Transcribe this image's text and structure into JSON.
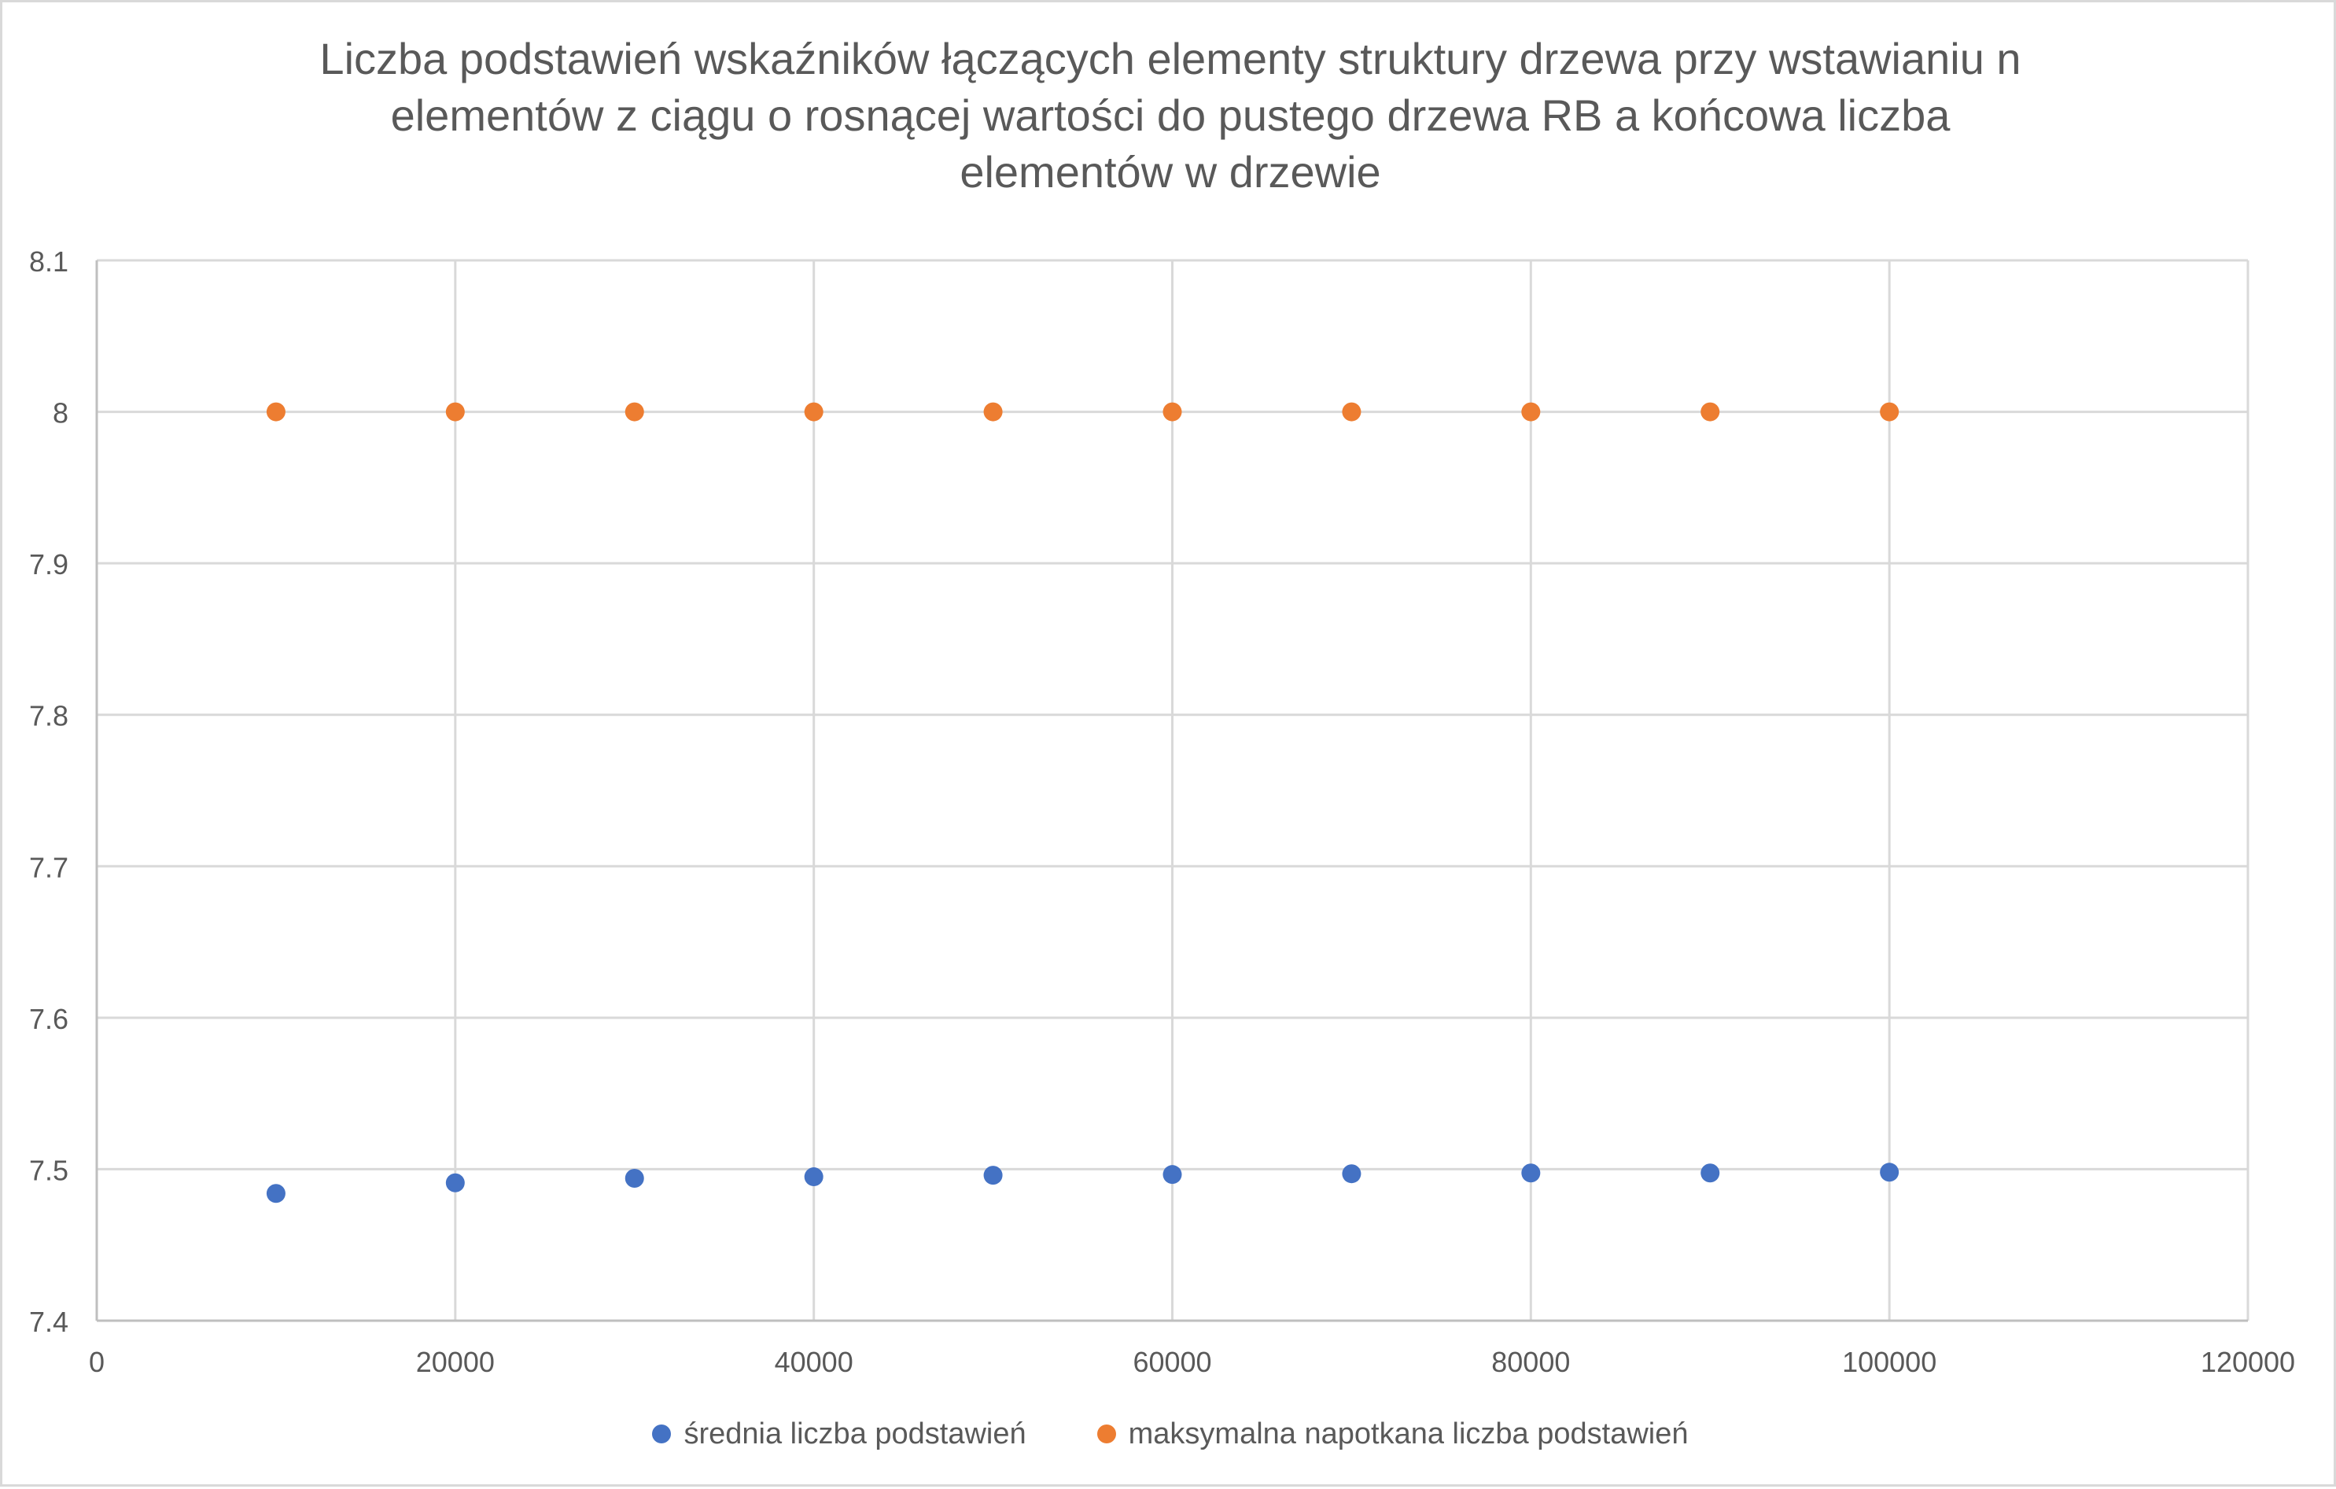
{
  "chart_data": {
    "type": "scatter",
    "title_lines": [
      "Liczba podstawień wskaźników łączących elementy struktury drzewa przy wstawianiu n",
      "elementów z ciągu o rosnącej wartości do pustego drzewa RB a końcowa liczba",
      "elementów w drzewie"
    ],
    "xlabel": "",
    "ylabel": "",
    "xlim": [
      0,
      120000
    ],
    "ylim": [
      7.4,
      8.1
    ],
    "x_ticks": [
      0,
      20000,
      40000,
      60000,
      80000,
      100000,
      120000
    ],
    "y_ticks": [
      7.4,
      7.5,
      7.6,
      7.7,
      7.8,
      7.9,
      8,
      8.1
    ],
    "x_tick_labels": [
      "0",
      "20000",
      "40000",
      "60000",
      "80000",
      "100000",
      "120000"
    ],
    "y_tick_labels": [
      "7.4",
      "7.5",
      "7.6",
      "7.7",
      "7.8",
      "7.9",
      "8",
      "8.1"
    ],
    "grid": true,
    "legend_position": "bottom",
    "series": [
      {
        "name": "średnia liczba podstawień",
        "color": "#4472c4",
        "x": [
          10000,
          20000,
          30000,
          40000,
          50000,
          60000,
          70000,
          80000,
          90000,
          100000
        ],
        "y": [
          7.484,
          7.491,
          7.494,
          7.495,
          7.496,
          7.4965,
          7.497,
          7.4975,
          7.4975,
          7.498
        ]
      },
      {
        "name": "maksymalna napotkana liczba podstawień",
        "color": "#ed7d31",
        "x": [
          10000,
          20000,
          30000,
          40000,
          50000,
          60000,
          70000,
          80000,
          90000,
          100000
        ],
        "y": [
          8,
          8,
          8,
          8,
          8,
          8,
          8,
          8,
          8,
          8
        ]
      }
    ]
  }
}
